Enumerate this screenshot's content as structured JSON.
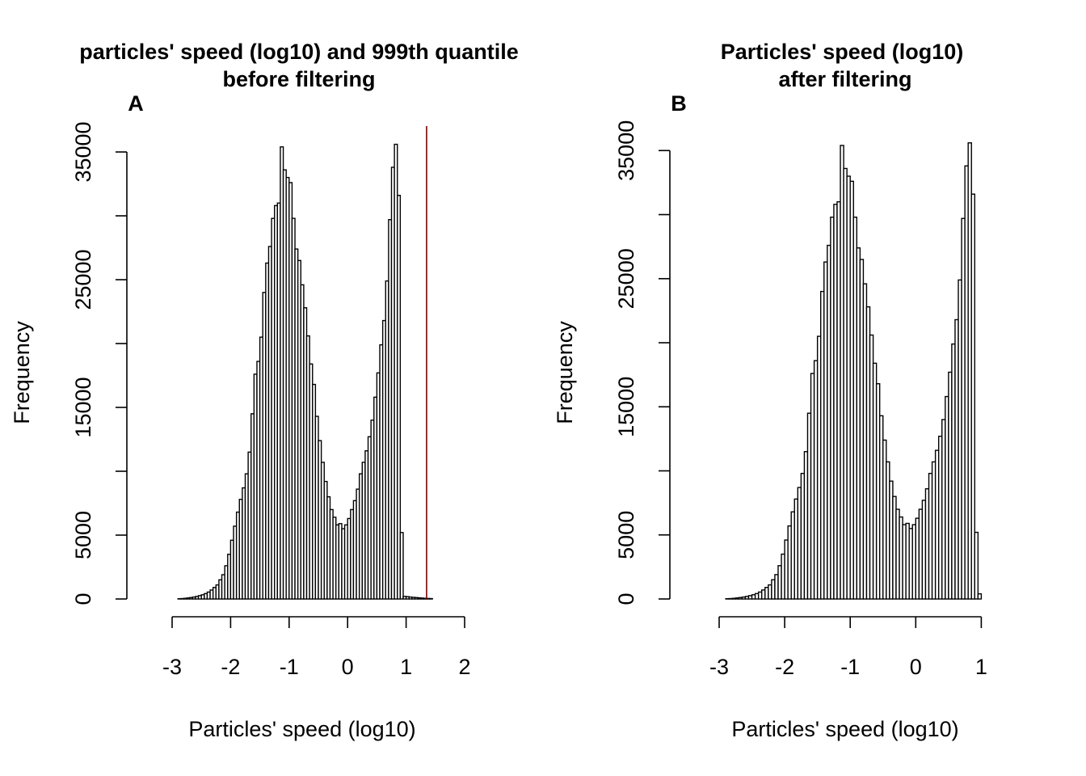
{
  "chart_data": [
    {
      "type": "bar",
      "panel_label": "A",
      "title_line1": "particles' speed (log10) and 999th quantile",
      "title_line2": "before filtering",
      "xlabel": "Particles' speed (log10)",
      "ylabel": "Frequency",
      "xlim": [
        -3.55,
        2.0
      ],
      "ylim": [
        0,
        35000
      ],
      "x_ticks": [
        -3,
        -2,
        -1,
        0,
        1,
        2
      ],
      "x_tick_labels": [
        "-3",
        "-2",
        "-1",
        "0",
        "1",
        "2"
      ],
      "y_ticks": [
        0,
        5000,
        15000,
        25000,
        35000
      ],
      "y_tick_labels": [
        "0",
        "5000",
        "15000",
        "25000",
        "35000"
      ],
      "y_minor_ticks": [
        10000,
        20000,
        30000
      ],
      "bin_start": -3.55,
      "bin_width": 0.05,
      "values": [
        0,
        0,
        0,
        0,
        0,
        0,
        0,
        0,
        0,
        0,
        0,
        0,
        0,
        20,
        30,
        50,
        80,
        110,
        150,
        200,
        260,
        330,
        420,
        540,
        700,
        900,
        1100,
        1500,
        1900,
        2600,
        3500,
        4600,
        5700,
        6800,
        7800,
        8700,
        9800,
        11500,
        14500,
        17600,
        18600,
        20500,
        24000,
        26300,
        27600,
        29800,
        30800,
        31000,
        35400,
        33600,
        33000,
        32600,
        29800,
        27400,
        26500,
        24600,
        22800,
        20600,
        18400,
        16800,
        14300,
        12400,
        10700,
        9200,
        8000,
        7000,
        6400,
        5800,
        5900,
        5500,
        5800,
        6300,
        7000,
        7700,
        8600,
        9800,
        10700,
        11600,
        12700,
        14000,
        15800,
        17700,
        19900,
        21800,
        24900,
        29700,
        33800,
        35600,
        31600,
        5200,
        200,
        180,
        150,
        130,
        110,
        90,
        70,
        50,
        40,
        30
      ],
      "quantile_line_x": 1.35,
      "quantile_line_color": "#7a0000"
    },
    {
      "type": "bar",
      "panel_label": "B",
      "title_line1": "Particles' speed (log10)",
      "title_line2": "after filtering",
      "xlabel": "Particles' speed (log10)",
      "ylabel": "Frequency",
      "xlim": [
        -3.55,
        1.4
      ],
      "ylim": [
        0,
        35000
      ],
      "x_ticks": [
        -3,
        -2,
        -1,
        0,
        1
      ],
      "x_tick_labels": [
        "-3",
        "-2",
        "-1",
        "0",
        "1"
      ],
      "y_ticks": [
        0,
        5000,
        15000,
        25000,
        35000
      ],
      "y_tick_labels": [
        "0",
        "5000",
        "15000",
        "25000",
        "35000"
      ],
      "y_minor_ticks": [
        10000,
        20000,
        30000
      ],
      "bin_start": -3.55,
      "bin_width": 0.05,
      "values": [
        0,
        0,
        0,
        0,
        0,
        0,
        0,
        0,
        0,
        0,
        0,
        0,
        0,
        20,
        30,
        50,
        80,
        110,
        150,
        200,
        260,
        330,
        420,
        540,
        700,
        900,
        1100,
        1500,
        1900,
        2600,
        3500,
        4600,
        5700,
        6800,
        7800,
        8700,
        9800,
        11500,
        14500,
        17600,
        18600,
        20500,
        24000,
        26300,
        27600,
        29800,
        30800,
        31000,
        35400,
        33600,
        33000,
        32600,
        29800,
        27400,
        26500,
        24600,
        22800,
        20600,
        18400,
        16800,
        14300,
        12400,
        10700,
        9200,
        8000,
        7000,
        6400,
        5800,
        5900,
        5500,
        5800,
        6300,
        7000,
        7700,
        8600,
        9800,
        10700,
        11600,
        12700,
        14000,
        15800,
        17700,
        19900,
        21800,
        24900,
        29700,
        33800,
        35600,
        31600,
        5200,
        400
      ]
    }
  ]
}
